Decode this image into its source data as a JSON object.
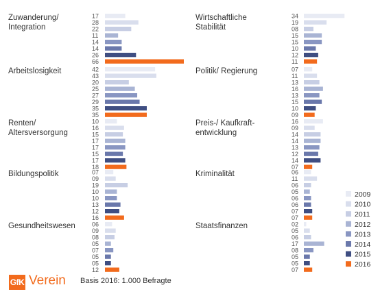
{
  "chart_data": {
    "type": "bar",
    "orientation": "horizontal",
    "series_names": [
      "2009",
      "2010",
      "2011",
      "2012",
      "2013",
      "2014",
      "2015",
      "2016"
    ],
    "colors": [
      "#e8ebf4",
      "#d9deed",
      "#c7cee4",
      "#a9b4d4",
      "#8996c2",
      "#6a78ab",
      "#3f4e82",
      "#f26b1d"
    ],
    "value_max": 66,
    "panels": [
      {
        "title": [
          "Zuwanderung/",
          "Integration"
        ],
        "labels": [
          "17",
          "28",
          "22",
          "11",
          "14",
          "14",
          "26",
          "66"
        ],
        "values": [
          17,
          28,
          22,
          11,
          14,
          14,
          26,
          66
        ]
      },
      {
        "title": [
          "Wirtschaftliche",
          "Stabilität"
        ],
        "labels": [
          "34",
          "19",
          "08",
          "15",
          "15",
          "10",
          "12",
          "11"
        ],
        "values": [
          34,
          19,
          8,
          15,
          15,
          10,
          12,
          11
        ]
      },
      {
        "title": [
          "Arbeitslosigkeit"
        ],
        "labels": [
          "42",
          "43",
          "20",
          "25",
          "27",
          "29",
          "35",
          "35"
        ],
        "values": [
          42,
          43,
          20,
          25,
          27,
          29,
          35,
          35
        ]
      },
      {
        "title": [
          "Politik/ Regierung"
        ],
        "labels": [
          "07",
          "11",
          "13",
          "16",
          "13",
          "15",
          "10",
          "09"
        ],
        "values": [
          7,
          11,
          13,
          16,
          13,
          15,
          10,
          9
        ]
      },
      {
        "title": [
          "Renten/",
          "Altersversorgung"
        ],
        "labels": [
          "10",
          "16",
          "15",
          "17",
          "17",
          "15",
          "17",
          "18"
        ],
        "values": [
          10,
          16,
          15,
          17,
          17,
          15,
          17,
          18
        ]
      },
      {
        "title": [
          "Preis-/ Kaufkraft-",
          "entwicklung"
        ],
        "labels": [
          "16",
          "09",
          "14",
          "14",
          "13",
          "12",
          "14",
          "07"
        ],
        "values": [
          16,
          9,
          14,
          14,
          13,
          12,
          14,
          7
        ]
      },
      {
        "title": [
          "Bildungspolitik"
        ],
        "labels": [
          "07",
          "09",
          "19",
          "10",
          "10",
          "13",
          "12",
          "16"
        ],
        "values": [
          7,
          9,
          19,
          10,
          10,
          13,
          12,
          16
        ]
      },
      {
        "title": [
          "Kriminalität"
        ],
        "labels": [
          "06",
          "11",
          "06",
          "05",
          "06",
          "06",
          "07",
          "07"
        ],
        "values": [
          6,
          11,
          6,
          5,
          6,
          6,
          7,
          7
        ]
      },
      {
        "title": [
          "Gesundheitswesen"
        ],
        "labels": [
          "06",
          "09",
          "08",
          "05",
          "07",
          "05",
          "05",
          "12"
        ],
        "values": [
          6,
          9,
          8,
          5,
          7,
          5,
          5,
          12
        ]
      },
      {
        "title": [
          "Staatsfinanzen"
        ],
        "labels": [
          "02",
          "05",
          "06",
          "17",
          "08",
          "05",
          "05",
          "07"
        ],
        "values": [
          2,
          5,
          6,
          17,
          8,
          5,
          5,
          7
        ]
      }
    ],
    "legend_placement": "bottom-right",
    "grid": false
  },
  "footer": {
    "logo_text": "GfK",
    "org_name": "Verein",
    "basis": "Basis 2016: 1.000 Befragte"
  }
}
